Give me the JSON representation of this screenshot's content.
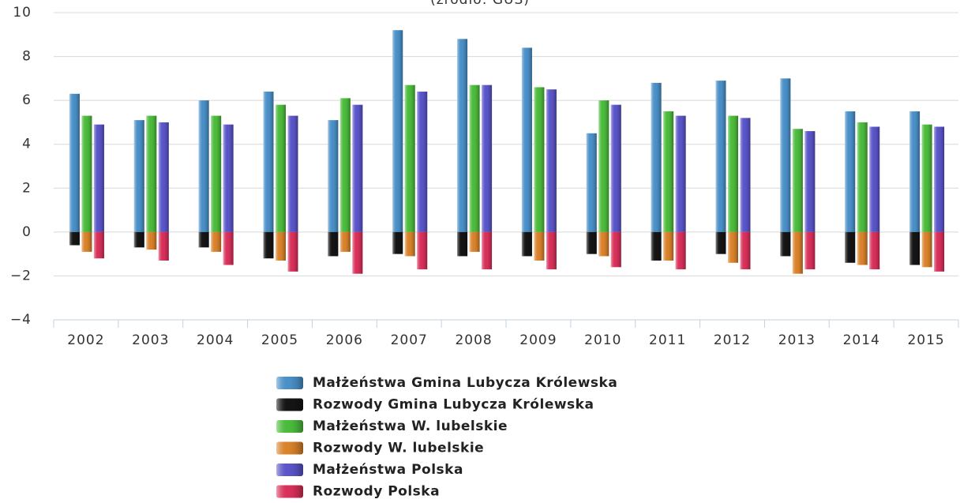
{
  "chart_data": {
    "type": "bar",
    "subtitle": "(źródło: GUS)",
    "categories": [
      "2002",
      "2003",
      "2004",
      "2005",
      "2006",
      "2007",
      "2008",
      "2009",
      "2010",
      "2011",
      "2012",
      "2013",
      "2014",
      "2015"
    ],
    "series": [
      {
        "name": "Małżeństwa Gmina Lubycza Królewska",
        "color": "#4a90c8",
        "values": [
          6.3,
          5.1,
          6.0,
          6.4,
          5.1,
          9.2,
          8.8,
          8.4,
          4.5,
          6.8,
          6.9,
          7.0,
          5.5,
          5.5
        ]
      },
      {
        "name": "Rozwody Gmina Lubycza Królewska",
        "color": "#151515",
        "values": [
          -0.6,
          -0.7,
          -0.7,
          -1.2,
          -1.1,
          -1.0,
          -1.1,
          -1.1,
          -1.0,
          -1.3,
          -1.0,
          -1.1,
          -1.4,
          -1.5
        ]
      },
      {
        "name": "Małżeństwa W. lubelskie",
        "color": "#4cbb3c",
        "values": [
          5.3,
          5.3,
          5.3,
          5.8,
          6.1,
          6.7,
          6.7,
          6.6,
          6.0,
          5.5,
          5.3,
          4.7,
          5.0,
          4.9
        ]
      },
      {
        "name": "Rozwody W. lubelskie",
        "color": "#d9822b",
        "values": [
          -0.9,
          -0.8,
          -0.9,
          -1.3,
          -0.9,
          -1.1,
          -0.9,
          -1.3,
          -1.1,
          -1.3,
          -1.4,
          -1.9,
          -1.5,
          -1.6
        ]
      },
      {
        "name": "Małżeństwa Polska",
        "color": "#5a55c8",
        "values": [
          4.9,
          5.0,
          4.9,
          5.3,
          5.8,
          6.4,
          6.7,
          6.5,
          5.8,
          5.3,
          5.2,
          4.6,
          4.8,
          4.8
        ]
      },
      {
        "name": "Rozwody Polska",
        "color": "#d8305a",
        "values": [
          -1.2,
          -1.3,
          -1.5,
          -1.8,
          -1.9,
          -1.7,
          -1.7,
          -1.7,
          -1.6,
          -1.7,
          -1.7,
          -1.7,
          -1.7,
          -1.8
        ]
      }
    ],
    "ylim": [
      -4,
      10
    ],
    "yticks": [
      {
        "value": -4,
        "label": "−4"
      },
      {
        "value": -2,
        "label": "−2"
      },
      0,
      2,
      4,
      6,
      8,
      10
    ],
    "grid": true,
    "legend": "bottom"
  }
}
